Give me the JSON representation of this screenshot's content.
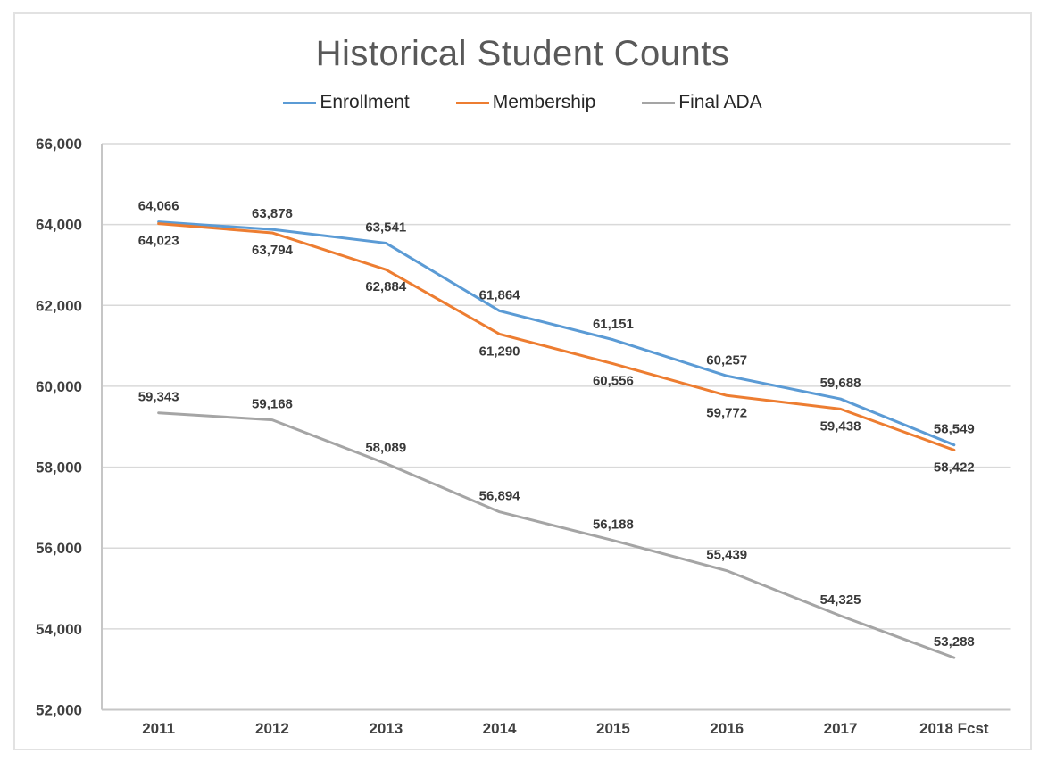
{
  "chart_data": {
    "type": "line",
    "title": "Historical Student Counts",
    "categories": [
      "2011",
      "2012",
      "2013",
      "2014",
      "2015",
      "2016",
      "2017",
      "2018 Fcst"
    ],
    "series": [
      {
        "name": "Enrollment",
        "color": "#5B9BD5",
        "label_position": "above",
        "values": [
          64066,
          63878,
          63541,
          61864,
          61151,
          60257,
          59688,
          58549
        ]
      },
      {
        "name": "Membership",
        "color": "#ED7D31",
        "label_position": "below",
        "values": [
          64023,
          63794,
          62884,
          61290,
          60556,
          59772,
          59438,
          58422
        ]
      },
      {
        "name": "Final ADA",
        "color": "#A5A5A5",
        "label_position": "above",
        "values": [
          59343,
          59168,
          58089,
          56894,
          56188,
          55439,
          54325,
          53288
        ]
      }
    ],
    "y_axis": {
      "min": 52000,
      "max": 66000,
      "step": 2000,
      "tick_labels": [
        "66,000",
        "64,000",
        "62,000",
        "60,000",
        "58,000",
        "56,000",
        "54,000",
        "52,000"
      ]
    },
    "grid": true,
    "legend_position": "top",
    "colors": {
      "title": "#595959",
      "axis_labels": "#404040",
      "data_labels": "#3A3A3A",
      "gridline": "#D9D9D9",
      "axis_line": "#C6C6C6",
      "chart_border": "#E2E2E2",
      "background": "#FFFFFF"
    }
  }
}
